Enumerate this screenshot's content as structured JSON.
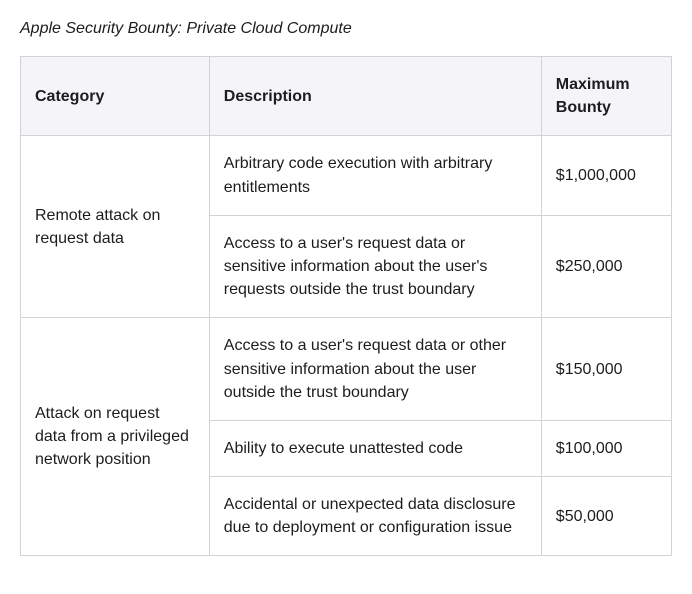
{
  "caption": "Apple Security Bounty: Private Cloud Compute",
  "colors": {
    "border": "#d2d2d7",
    "header_bg": "#f5f5f7",
    "text": "#1d1d1f",
    "background": "#ffffff"
  },
  "table": {
    "columns": [
      {
        "key": "category",
        "label": "Category",
        "width_pct": 29
      },
      {
        "key": "description",
        "label": "Description",
        "width_pct": 51
      },
      {
        "key": "bounty",
        "label": "Maximum Bounty",
        "width_pct": 20
      }
    ],
    "groups": [
      {
        "category": "Remote attack on request data",
        "rows": [
          {
            "description": "Arbitrary code execution with arbitrary entitlements",
            "bounty": "$1,000,000"
          },
          {
            "description": "Access to a user's request data or sensitive information about the user's requests outside the trust boundary",
            "bounty": "$250,000"
          }
        ]
      },
      {
        "category": "Attack on request data from a privileged network position",
        "rows": [
          {
            "description": "Access to a user's request data or other sensitive information about the user outside the trust boundary",
            "bounty": "$150,000"
          },
          {
            "description": "Ability to execute unattested code",
            "bounty": "$100,000"
          },
          {
            "description": "Accidental or unexpected data disclosure due to deployment or configuration issue",
            "bounty": "$50,000"
          }
        ]
      }
    ]
  }
}
